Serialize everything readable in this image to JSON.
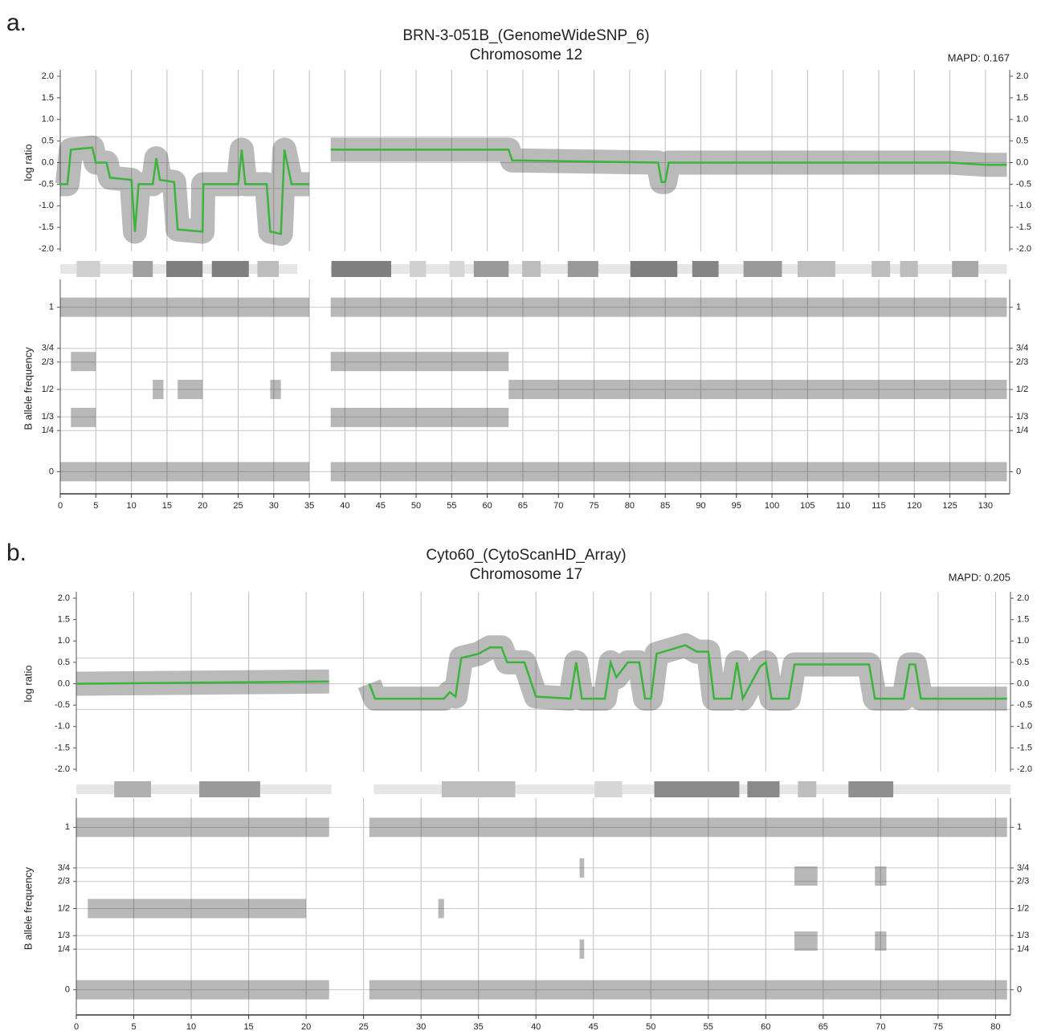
{
  "chart_data": [
    {
      "type": "line",
      "label": "a.",
      "title": "BRN-3-051B_(GenomeWideSNP_6)",
      "subtitle": "Chromosome 12",
      "annotation": "MAPD: 0.167",
      "ylabel": "log ratio",
      "color": "#3cb43c",
      "x": [
        0,
        1,
        1.5,
        4.5,
        5,
        6.5,
        7,
        10,
        10.5,
        11,
        13,
        13.5,
        14,
        16,
        16.5,
        20,
        20.1,
        25,
        25.5,
        26,
        29,
        29.5,
        31,
        31.5,
        32.5,
        35,
        36.5,
        38,
        63,
        63.5,
        84,
        84.5,
        85,
        85.5,
        125,
        130,
        133
      ],
      "values": [
        -0.5,
        -0.5,
        0.3,
        0.35,
        0,
        0,
        -0.35,
        -0.4,
        -1.6,
        -0.5,
        -0.5,
        0.1,
        -0.4,
        -0.45,
        -1.55,
        -1.6,
        -0.5,
        -0.5,
        0.3,
        -0.5,
        -0.5,
        -1.6,
        -1.65,
        0.3,
        -0.5,
        -0.5,
        null,
        0.3,
        0.3,
        0.05,
        0,
        -0.45,
        -0.45,
        0,
        0,
        -0.05,
        -0.05
      ],
      "xlim": [
        0,
        133.4
      ],
      "ylim": [
        -2,
        2
      ],
      "yticks": [
        {
          "value": 2,
          "label": "2.0"
        },
        1.5,
        {
          "value": 1,
          "label": "1.0"
        },
        0.5,
        {
          "value": 0,
          "label": "0.0"
        },
        -0.5,
        {
          "value": -1,
          "label": "-1.0"
        },
        -1.5,
        {
          "value": -2,
          "label": "-2.0"
        }
      ],
      "xticks": [
        0,
        5,
        10,
        15,
        20,
        25,
        30,
        35,
        40,
        45,
        50,
        55,
        60,
        65,
        70,
        75,
        80,
        85,
        90,
        95,
        100,
        105,
        110,
        115,
        120,
        125,
        130
      ],
      "reference_lines": [
        0.6,
        0,
        -0.6
      ],
      "ideogram": {
        "start": [
          0,
          38,
          2.3,
          10.2,
          14.9,
          21.3,
          27.7,
          38.1,
          49.1,
          54.7,
          58.1,
          64.9,
          71.3,
          80.1,
          88.8,
          96,
          103.6,
          114,
          118,
          125.3
        ],
        "end": [
          33.3,
          133,
          5.6,
          13,
          20,
          26.5,
          30.7,
          46.5,
          51.4,
          56.8,
          63,
          67.5,
          75.6,
          86.7,
          92.5,
          101.4,
          108.9,
          116.6,
          120.5,
          129
        ],
        "colors": [
          "#e6e6e6",
          "#e6e6e6",
          "#cfcfcf",
          "#a0a0a0",
          "#7f7f7f",
          "#7f7f7f",
          "#bdbdbd",
          "#7f7f7f",
          "#d0d0d0",
          "#d6d6d6",
          "#9a9a9a",
          "#bdbdbd",
          "#9a9a9a",
          "#7f7f7f",
          "#858585",
          "#9a9a9a",
          "#bdbdbd",
          "#bdbdbd",
          "#bdbdbd",
          "#a8a8a8"
        ]
      }
    },
    {
      "type": "band",
      "ylabel": "B allele frequency",
      "color": "#333333",
      "start": [
        0,
        38,
        0,
        38,
        1.5,
        1.5,
        38,
        38,
        63,
        13,
        16.5,
        29.5
      ],
      "end": [
        35,
        133,
        35,
        133,
        5,
        5,
        63,
        63,
        133,
        14.5,
        20,
        31
      ],
      "values": [
        1,
        1,
        0,
        0,
        0.67,
        0.33,
        0.67,
        0.33,
        0.5,
        0.5,
        0.5,
        0.5
      ],
      "xlim": [
        0,
        133.4
      ],
      "ylim": [
        -0.12,
        1.13
      ],
      "yticks": [
        0,
        {
          "value": 0.25,
          "label": "1/4"
        },
        {
          "value": 0.3333,
          "label": "1/3"
        },
        {
          "value": 0.5,
          "label": "1/2"
        },
        {
          "value": 0.6667,
          "label": "2/3"
        },
        {
          "value": 0.75,
          "label": "3/4"
        },
        1
      ],
      "xticks": [
        0,
        5,
        10,
        15,
        20,
        25,
        30,
        35,
        40,
        45,
        50,
        55,
        60,
        65,
        70,
        75,
        80,
        85,
        90,
        95,
        100,
        105,
        110,
        115,
        120,
        125,
        130
      ]
    },
    {
      "type": "line",
      "label": "b.",
      "title": "Cyto60_(CytoScanHD_Array)",
      "subtitle": "Chromosome 17",
      "annotation": "MAPD: 0.205",
      "ylabel": "log ratio",
      "color": "#3cb43c",
      "x": [
        0,
        22,
        23.5,
        25.5,
        26,
        32,
        32.5,
        33,
        33.5,
        35,
        36,
        37,
        37.5,
        39,
        40,
        43,
        43.5,
        44,
        46,
        46.5,
        47,
        48,
        49,
        49.5,
        50,
        50.5,
        53,
        54,
        55,
        55.5,
        57,
        57.5,
        58,
        59.5,
        60,
        60.5,
        62,
        62.5,
        69,
        69.5,
        72,
        72.5,
        73,
        73.5,
        81
      ],
      "values": [
        0,
        0.05,
        null,
        0,
        -0.35,
        -0.35,
        -0.2,
        -0.3,
        0.6,
        0.7,
        0.85,
        0.85,
        0.5,
        0.5,
        -0.3,
        -0.35,
        0.5,
        -0.35,
        -0.35,
        0.5,
        0.15,
        0.5,
        0.5,
        -0.35,
        -0.35,
        0.7,
        0.9,
        0.75,
        0.75,
        -0.35,
        -0.35,
        0.5,
        -0.35,
        0.4,
        0.5,
        -0.35,
        -0.35,
        0.45,
        0.45,
        -0.35,
        -0.35,
        0.45,
        0.45,
        -0.35,
        -0.35
      ],
      "xlim": [
        0,
        81.3
      ],
      "ylim": [
        -2,
        2
      ],
      "yticks": [
        {
          "value": 2,
          "label": "2.0"
        },
        1.5,
        {
          "value": 1,
          "label": "1.0"
        },
        0.5,
        {
          "value": 0,
          "label": "0.0"
        },
        -0.5,
        {
          "value": -1,
          "label": "-1.0"
        },
        -1.5,
        {
          "value": -2,
          "label": "-2.0"
        }
      ],
      "xticks": [
        0,
        5,
        10,
        15,
        20,
        25,
        30,
        35,
        40,
        45,
        50,
        55,
        60,
        65,
        70,
        75,
        80
      ],
      "reference_lines": [
        0.6,
        0,
        -0.6
      ],
      "ideogram": {
        "start": [
          0,
          25.9,
          3.3,
          10.7,
          31.8,
          45.1,
          50.3,
          58.4,
          62.8,
          67.2
        ],
        "end": [
          22.2,
          81.3,
          6.5,
          16,
          38.2,
          47.5,
          57.7,
          61.2,
          64.4,
          71.1
        ],
        "colors": [
          "#e6e6e6",
          "#e6e6e6",
          "#b0b0b0",
          "#9a9a9a",
          "#bdbdbd",
          "#d6d6d6",
          "#8a8a8a",
          "#8a8a8a",
          "#bdbdbd",
          "#8f8f8f"
        ]
      }
    },
    {
      "type": "band",
      "ylabel": "B allele frequency",
      "color": "#333333",
      "start": [
        0,
        25.5,
        0,
        25.5,
        1,
        31.5,
        43.8,
        43.8,
        62.5,
        62.5,
        69.5,
        69.5
      ],
      "end": [
        22,
        81,
        22,
        81,
        20,
        32,
        44.2,
        44.2,
        64.5,
        64.5,
        70.5,
        70.5
      ],
      "values": [
        1,
        1,
        0,
        0,
        0.5,
        0.5,
        0.75,
        0.25,
        0.7,
        0.3,
        0.7,
        0.3
      ],
      "xlim": [
        0,
        81.3
      ],
      "ylim": [
        -0.14,
        1.14
      ],
      "yticks": [
        0,
        {
          "value": 0.25,
          "label": "1/4"
        },
        {
          "value": 0.3333,
          "label": "1/3"
        },
        {
          "value": 0.5,
          "label": "1/2"
        },
        {
          "value": 0.6667,
          "label": "2/3"
        },
        {
          "value": 0.75,
          "label": "3/4"
        },
        1
      ],
      "xticks": [
        0,
        5,
        10,
        15,
        20,
        25,
        30,
        35,
        40,
        45,
        50,
        55,
        60,
        65,
        70,
        75,
        80
      ]
    }
  ]
}
